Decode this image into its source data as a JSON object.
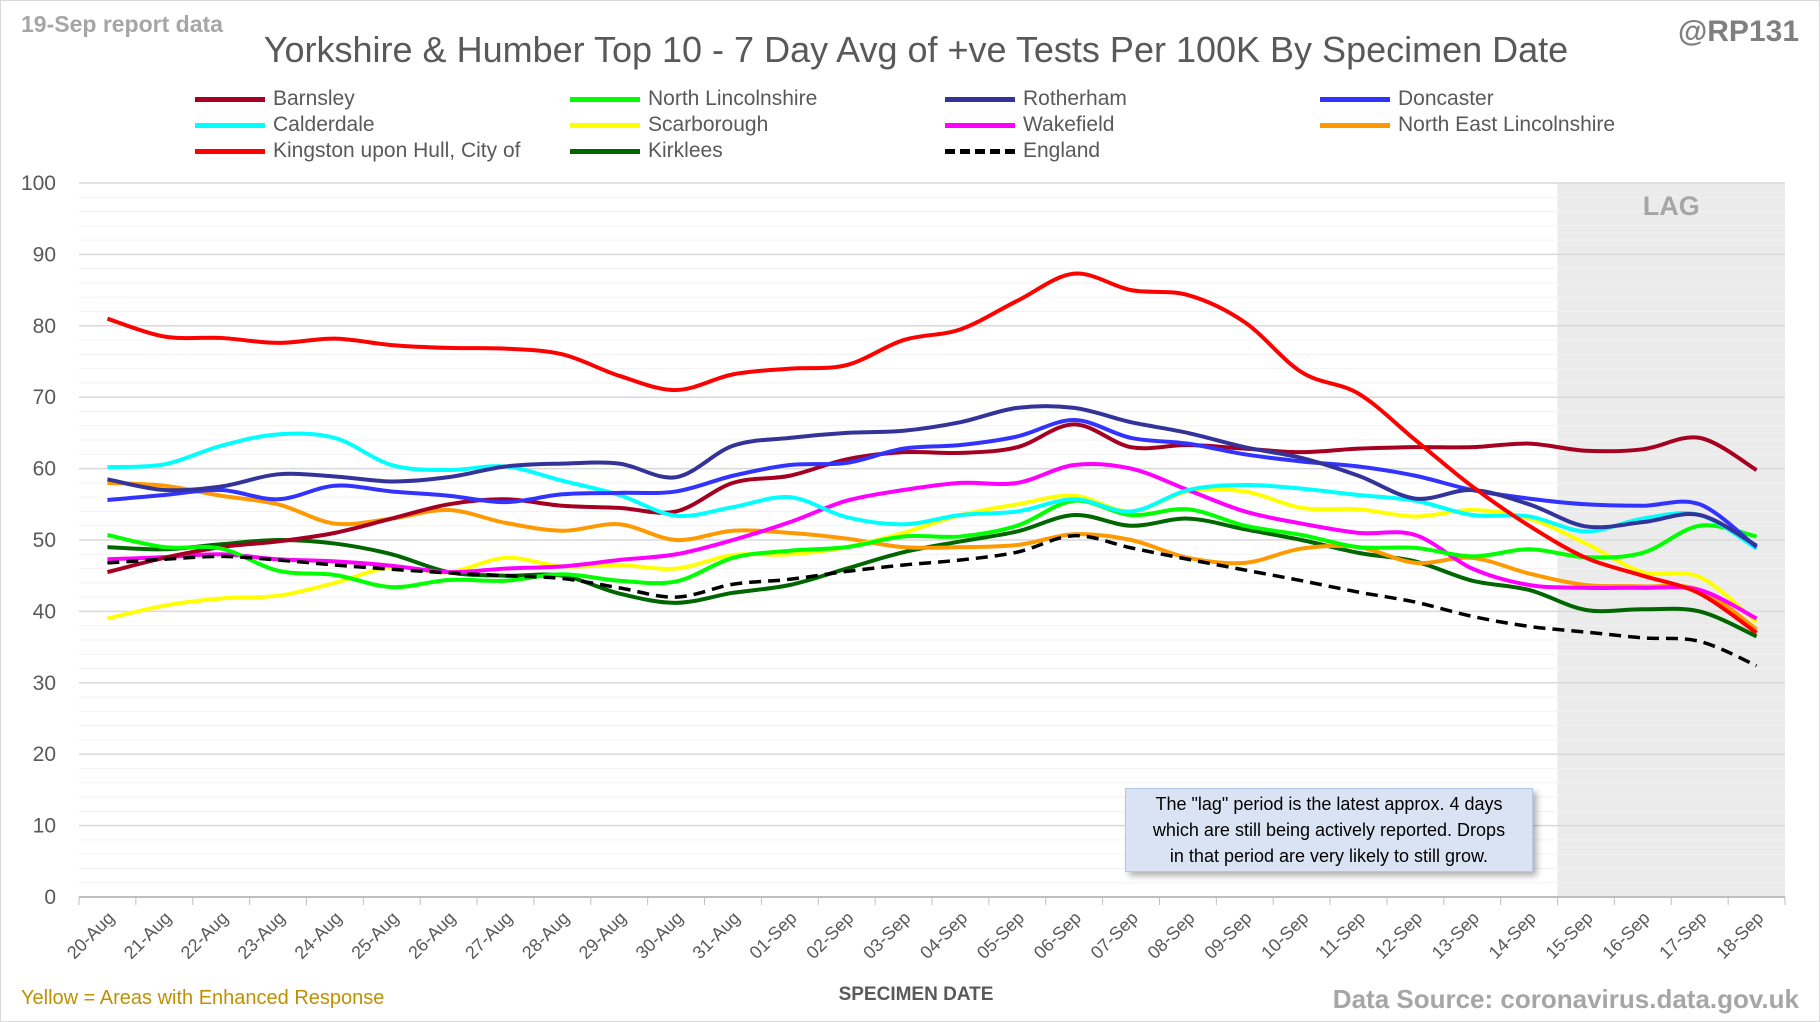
{
  "header": {
    "report_label": "19-Sep report data",
    "handle": "@RP131"
  },
  "footer": {
    "note": "Yellow = Areas with Enhanced Response",
    "source": "Data Source: coronavirus.data.gov.uk"
  },
  "chart_data": {
    "type": "line",
    "title": "Yorkshire & Humber Top 10 - 7 Day Avg of +ve Tests Per 100K By Specimen Date",
    "xlabel": "SPECIMEN DATE",
    "ylabel": "",
    "ylim": [
      0,
      100
    ],
    "yticks": [
      0,
      10,
      20,
      30,
      40,
      50,
      60,
      70,
      80,
      90,
      100
    ],
    "grid": true,
    "legend_position": "top",
    "lag_label": "LAG",
    "lag_start": "15-Sep",
    "annotation": "The \"lag\" period is the latest approx. 4 days\nwhich are still being actively reported. Drops\nin that period are very likely to still grow.",
    "categories": [
      "20-Aug",
      "21-Aug",
      "22-Aug",
      "23-Aug",
      "24-Aug",
      "25-Aug",
      "26-Aug",
      "27-Aug",
      "28-Aug",
      "29-Aug",
      "30-Aug",
      "31-Aug",
      "01-Sep",
      "02-Sep",
      "03-Sep",
      "04-Sep",
      "05-Sep",
      "06-Sep",
      "07-Sep",
      "08-Sep",
      "09-Sep",
      "10-Sep",
      "11-Sep",
      "12-Sep",
      "13-Sep",
      "14-Sep",
      "15-Sep",
      "16-Sep",
      "17-Sep",
      "18-Sep"
    ],
    "series": [
      {
        "name": "Barnsley",
        "color": "#a50021",
        "values": [
          45.5,
          47.5,
          49,
          49.8,
          51,
          53,
          55,
          55.7,
          54.8,
          54.5,
          54,
          58,
          59,
          61.3,
          62.3,
          62.2,
          63,
          66.2,
          63,
          63.3,
          62.8,
          62.3,
          62.8,
          63,
          63,
          63.5,
          62.5,
          62.7,
          64.3,
          59.8
        ]
      },
      {
        "name": "North Lincolnshire",
        "color": "#00ff00",
        "values": [
          50.7,
          49,
          48.8,
          45.7,
          45.1,
          43.4,
          44.4,
          44.3,
          45.2,
          44.3,
          44.2,
          47.5,
          48.5,
          49,
          50.5,
          50.5,
          52,
          55.5,
          53.5,
          54.3,
          52,
          50.7,
          49,
          48.9,
          47.7,
          48.7,
          47.6,
          48.2,
          52,
          50.5
        ]
      },
      {
        "name": "Rotherham",
        "color": "#333399",
        "values": [
          58.5,
          57,
          57.5,
          59.2,
          58.9,
          58.2,
          58.8,
          60.3,
          60.7,
          60.7,
          58.8,
          63.2,
          64.3,
          65,
          65.3,
          66.5,
          68.5,
          68.5,
          66.5,
          65,
          63,
          61.5,
          59,
          55.8,
          57,
          55,
          51.9,
          52.5,
          53.5,
          49.2
        ]
      },
      {
        "name": "Doncaster",
        "color": "#3333ff",
        "values": [
          55.6,
          56.3,
          57,
          55.7,
          57.6,
          56.8,
          56.2,
          55.3,
          56.4,
          56.6,
          56.8,
          59,
          60.5,
          60.8,
          62.8,
          63.3,
          64.5,
          66.8,
          64.3,
          63.5,
          62,
          61,
          60.3,
          59,
          57,
          55.8,
          55,
          54.8,
          55,
          49
        ]
      },
      {
        "name": "Calderdale",
        "color": "#00ffff",
        "values": [
          60.2,
          60.6,
          63.2,
          64.8,
          64.3,
          60.5,
          59.8,
          60.3,
          58.3,
          56.3,
          53.4,
          54.6,
          56,
          53.2,
          52.2,
          53.5,
          54,
          55.7,
          54,
          57,
          57.7,
          57.2,
          56.3,
          55.5,
          53.5,
          53.3,
          51.2,
          53,
          53.5,
          48.8
        ]
      },
      {
        "name": "Scarborough",
        "color": "#ffff00",
        "values": [
          39,
          40.8,
          41.8,
          42.2,
          44,
          46.2,
          45.5,
          47.5,
          46.3,
          46.5,
          46,
          47.9,
          48,
          49,
          51,
          53.5,
          55,
          56.2,
          54,
          56.8,
          56.8,
          54.5,
          54.3,
          53.3,
          54.2,
          53,
          49.5,
          45.5,
          44.8,
          38.5
        ]
      },
      {
        "name": "Wakefield",
        "color": "#ff00ff",
        "values": [
          47.3,
          47.6,
          48,
          47.3,
          47,
          46.4,
          45.5,
          46,
          46.3,
          47.2,
          48,
          50,
          52.5,
          55.5,
          57,
          58,
          58,
          60.5,
          60,
          57,
          54,
          52.3,
          51,
          50.7,
          46,
          43.7,
          43.3,
          43.3,
          43,
          39
        ]
      },
      {
        "name": "North East Lincolnshire",
        "color": "#ff9900",
        "values": [
          58,
          57.6,
          56.2,
          55,
          52.3,
          53,
          54.2,
          52.4,
          51.3,
          52.2,
          50,
          51.3,
          51,
          50.2,
          49,
          49,
          49.3,
          50.8,
          50,
          47.5,
          46.8,
          48.8,
          49,
          46.8,
          47.5,
          45.3,
          43.7,
          43.5,
          43,
          37.5
        ]
      },
      {
        "name": "Kingston upon Hull, City of",
        "color": "#ff0000",
        "values": [
          81,
          78.5,
          78.3,
          77.6,
          78.2,
          77.3,
          76.9,
          76.8,
          76,
          73,
          71,
          73.2,
          74,
          74.5,
          78,
          79.5,
          83.5,
          87.3,
          85,
          84.3,
          80.5,
          73.5,
          70.5,
          64,
          57.5,
          52,
          47.5,
          45,
          42.5,
          37
        ]
      },
      {
        "name": "Kirklees",
        "color": "#006600",
        "values": [
          49,
          48.7,
          49.4,
          50,
          49.5,
          48,
          45.5,
          45,
          45,
          42.5,
          41.2,
          42.6,
          43.7,
          46,
          48.3,
          49.8,
          51.2,
          53.5,
          52,
          53,
          51.5,
          50,
          48.2,
          47,
          44.3,
          43,
          40.2,
          40.3,
          40,
          36.5
        ]
      },
      {
        "name": "England",
        "color": "#000000",
        "dashed": true,
        "values": [
          46.8,
          47.3,
          47.7,
          47.2,
          46.5,
          45.9,
          45.4,
          45,
          44.6,
          43.3,
          42,
          43.8,
          44.5,
          45.6,
          46.5,
          47.2,
          48.3,
          50.6,
          48.9,
          47.3,
          45.8,
          44.3,
          42.7,
          41.3,
          39.3,
          37.9,
          37.1,
          36.3,
          35.8,
          32.4
        ]
      }
    ]
  }
}
